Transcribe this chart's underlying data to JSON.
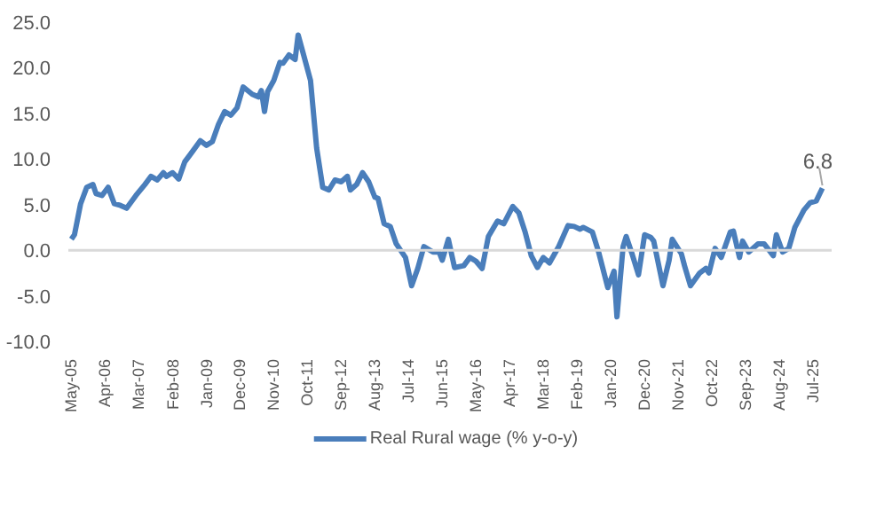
{
  "chart_data": {
    "type": "line",
    "x": [
      "2005-05",
      "2005-06",
      "2005-08",
      "2005-10",
      "2005-12",
      "2006-01",
      "2006-03",
      "2006-05",
      "2006-07",
      "2006-09",
      "2006-11",
      "2007-02",
      "2007-05",
      "2007-07",
      "2007-09",
      "2007-11",
      "2007-12",
      "2008-02",
      "2008-04",
      "2008-06",
      "2008-08",
      "2008-11",
      "2009-01",
      "2009-03",
      "2009-05",
      "2009-07",
      "2009-09",
      "2009-11",
      "2010-01",
      "2010-04",
      "2010-06",
      "2010-07",
      "2010-08",
      "2010-09",
      "2010-11",
      "2011-01",
      "2011-02",
      "2011-04",
      "2011-06",
      "2011-07",
      "2011-09",
      "2011-11",
      "2012-01",
      "2012-03",
      "2012-05",
      "2012-07",
      "2012-09",
      "2012-11",
      "2012-12",
      "2013-02",
      "2013-04",
      "2013-06",
      "2013-08",
      "2013-09",
      "2013-11",
      "2014-01",
      "2014-03",
      "2014-06",
      "2014-08",
      "2014-10",
      "2014-12",
      "2015-03",
      "2015-05",
      "2015-06",
      "2015-08",
      "2015-10",
      "2016-01",
      "2016-03",
      "2016-05",
      "2016-07",
      "2016-09",
      "2016-12",
      "2017-02",
      "2017-05",
      "2017-07",
      "2017-09",
      "2017-11",
      "2018-01",
      "2018-03",
      "2018-05",
      "2018-08",
      "2018-11",
      "2019-01",
      "2019-03",
      "2019-04",
      "2019-07",
      "2019-09",
      "2019-12",
      "2020-02",
      "2020-03",
      "2020-05",
      "2020-06",
      "2020-08",
      "2020-10",
      "2020-12",
      "2021-02",
      "2021-03",
      "2021-06",
      "2021-08",
      "2021-09",
      "2021-12",
      "2022-01",
      "2022-03",
      "2022-06",
      "2022-08",
      "2022-09",
      "2022-11",
      "2023-01",
      "2023-04",
      "2023-05",
      "2023-07",
      "2023-08",
      "2023-10",
      "2024-01",
      "2024-03",
      "2024-06",
      "2024-07",
      "2024-09",
      "2024-11",
      "2025-01",
      "2025-04",
      "2025-06",
      "2025-08",
      "2025-10"
    ],
    "series": [
      {
        "name": "Real Rural wage (% y-o-y)",
        "color": "#4a7ebb",
        "values": [
          1.2,
          1.7,
          5.1,
          6.9,
          7.2,
          6.2,
          6.0,
          6.9,
          5.1,
          4.9,
          4.6,
          6.0,
          7.2,
          8.1,
          7.7,
          8.5,
          8.1,
          8.5,
          7.8,
          9.7,
          10.6,
          12.0,
          11.5,
          11.9,
          13.8,
          15.2,
          14.8,
          15.6,
          17.9,
          17.1,
          16.8,
          17.5,
          15.2,
          17.4,
          18.6,
          20.6,
          20.5,
          21.4,
          20.9,
          23.6,
          21.1,
          18.6,
          11.2,
          6.9,
          6.6,
          7.7,
          7.5,
          8.1,
          6.6,
          7.2,
          8.5,
          7.5,
          5.8,
          5.7,
          2.9,
          2.6,
          0.7,
          -0.8,
          -3.9,
          -2.0,
          0.4,
          -0.2,
          -0.2,
          -1.1,
          1.2,
          -1.9,
          -1.7,
          -0.8,
          -1.2,
          -2.0,
          1.5,
          3.2,
          2.9,
          4.8,
          4.1,
          2.0,
          -0.6,
          -1.9,
          -0.8,
          -1.4,
          0.4,
          2.7,
          2.6,
          2.3,
          2.5,
          2.0,
          -0.2,
          -4.1,
          -2.3,
          -7.3,
          0.4,
          1.5,
          -0.5,
          -2.7,
          1.7,
          1.4,
          1.0,
          -3.9,
          -1.1,
          1.2,
          -0.4,
          -1.7,
          -3.9,
          -2.5,
          -2.0,
          -2.5,
          0.2,
          -0.8,
          2.0,
          2.1,
          -0.8,
          1.0,
          -0.2,
          0.7,
          0.7,
          -0.6,
          1.7,
          -0.2,
          0.2,
          2.5,
          4.4,
          5.2,
          5.4,
          6.8
        ]
      }
    ],
    "xlim": [
      "2005-04",
      "2026-01"
    ],
    "xticks": [
      {
        "value": "2005-05",
        "label": "May-05"
      },
      {
        "value": "2006-04",
        "label": "Apr-06"
      },
      {
        "value": "2007-03",
        "label": "Mar-07"
      },
      {
        "value": "2008-02",
        "label": "Feb-08"
      },
      {
        "value": "2009-01",
        "label": "Jan-09"
      },
      {
        "value": "2009-12",
        "label": "Dec-09"
      },
      {
        "value": "2010-11",
        "label": "Nov-10"
      },
      {
        "value": "2011-10",
        "label": "Oct-11"
      },
      {
        "value": "2012-09",
        "label": "Sep-12"
      },
      {
        "value": "2013-08",
        "label": "Aug-13"
      },
      {
        "value": "2014-07",
        "label": "Jul-14"
      },
      {
        "value": "2015-06",
        "label": "Jun-15"
      },
      {
        "value": "2016-05",
        "label": "May-16"
      },
      {
        "value": "2017-04",
        "label": "Apr-17"
      },
      {
        "value": "2018-03",
        "label": "Mar-18"
      },
      {
        "value": "2019-02",
        "label": "Feb-19"
      },
      {
        "value": "2020-01",
        "label": "Jan-20"
      },
      {
        "value": "2020-12",
        "label": "Dec-20"
      },
      {
        "value": "2021-11",
        "label": "Nov-21"
      },
      {
        "value": "2022-10",
        "label": "Oct-22"
      },
      {
        "value": "2023-09",
        "label": "Sep-23"
      },
      {
        "value": "2024-08",
        "label": "Aug-24"
      },
      {
        "value": "2025-07",
        "label": "Jul-25"
      }
    ],
    "ylim": [
      -10,
      25
    ],
    "yticks": [
      {
        "value": -10,
        "label": "-10.0"
      },
      {
        "value": -5,
        "label": "-5.0"
      },
      {
        "value": 0,
        "label": "0.0"
      },
      {
        "value": 5,
        "label": "5.0"
      },
      {
        "value": 10,
        "label": "10.0"
      },
      {
        "value": 15,
        "label": "15.0"
      },
      {
        "value": 20,
        "label": "20.0"
      },
      {
        "value": 25,
        "label": "25.0"
      }
    ],
    "ref_lines": [
      {
        "axis": "y",
        "value": 0,
        "color": "#d9d9d9"
      }
    ],
    "annotations": [
      {
        "text": "6.8",
        "x": "2025-10",
        "y": 6.8
      }
    ],
    "grid": false,
    "legend": "bottom",
    "marker": "none",
    "line_style": "solid"
  }
}
